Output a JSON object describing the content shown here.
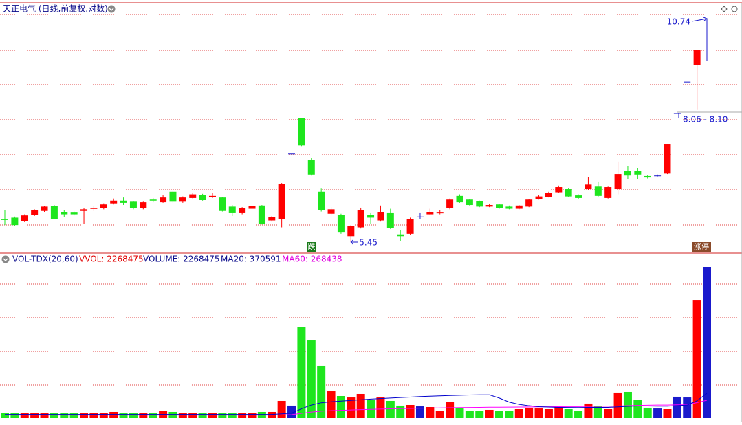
{
  "chart_data": {
    "type": "candlestick",
    "title": "天正电气 (日线,前复权,对数)",
    "log_scale": true,
    "grid": true,
    "up_color": "#ff0000",
    "down_color": "#1ee61e",
    "flat_color": "#1a1acc",
    "ma20_color": "#0000cc",
    "ma60_color": "#ff00ff",
    "open": [
      5.84,
      5.87,
      5.81,
      5.92,
      5.99,
      6.08,
      5.97,
      5.96,
      5.99,
      6.03,
      6.04,
      6.13,
      6.18,
      6.16,
      6.04,
      6.2,
      6.15,
      6.35,
      6.16,
      6.23,
      6.29,
      6.25,
      6.24,
      6.07,
      5.95,
      6.03,
      6.09,
      5.82,
      5.85,
      7.13,
      7.94,
      6.99,
      6.35,
      5.94,
      5.92,
      5.55,
      5.7,
      5.92,
      5.82,
      5.95,
      5.58,
      5.59,
      5.89,
      5.93,
      5.95,
      6.04,
      6.27,
      6.2,
      6.17,
      6.07,
      6.11,
      6.07,
      6.03,
      6.07,
      6.21,
      6.25,
      6.34,
      6.4,
      6.28,
      6.4,
      6.45,
      6.23,
      6.4,
      6.76,
      6.76,
      6.66,
      6.67,
      6.71,
      8.06,
      8.87,
      9.32,
      10.74
    ],
    "high": [
      6.0,
      5.89,
      5.93,
      6.02,
      6.08,
      6.1,
      6.0,
      5.98,
      6.04,
      6.08,
      6.13,
      6.22,
      6.24,
      6.17,
      6.16,
      6.23,
      6.28,
      6.36,
      6.26,
      6.32,
      6.31,
      6.32,
      6.25,
      6.1,
      6.06,
      6.1,
      6.1,
      5.9,
      6.52,
      7.13,
      7.95,
      7.03,
      6.41,
      6.06,
      5.94,
      5.74,
      6.05,
      5.95,
      6.09,
      6.03,
      5.65,
      5.87,
      5.95,
      6.03,
      6.0,
      6.22,
      6.3,
      6.21,
      6.18,
      6.12,
      6.12,
      6.09,
      6.1,
      6.21,
      6.28,
      6.35,
      6.47,
      6.42,
      6.3,
      6.64,
      6.55,
      6.45,
      6.96,
      6.86,
      6.82,
      6.68,
      6.69,
      7.34,
      8.06,
      8.87,
      9.76,
      10.74
    ],
    "low": [
      5.74,
      5.72,
      5.79,
      5.9,
      5.97,
      5.84,
      5.88,
      5.91,
      5.76,
      5.99,
      6.02,
      6.11,
      6.1,
      6.02,
      6.02,
      6.15,
      6.14,
      6.14,
      6.14,
      6.22,
      6.18,
      6.23,
      5.98,
      5.9,
      5.93,
      6.01,
      5.75,
      5.8,
      5.7,
      7.13,
      7.28,
      6.67,
      5.98,
      5.92,
      5.59,
      5.45,
      5.68,
      5.76,
      5.8,
      5.67,
      5.47,
      5.57,
      5.84,
      5.92,
      5.93,
      6.02,
      6.14,
      6.09,
      6.06,
      6.06,
      6.03,
      6.02,
      6.02,
      6.06,
      6.2,
      6.24,
      6.33,
      6.25,
      6.21,
      6.38,
      6.25,
      6.22,
      6.3,
      6.6,
      6.6,
      6.61,
      6.65,
      6.7,
      8.06,
      8.87,
      8.14,
      9.45
    ],
    "close": [
      5.83,
      5.74,
      5.91,
      6.0,
      6.07,
      5.85,
      5.93,
      5.93,
      6.02,
      6.04,
      6.11,
      6.18,
      6.14,
      6.04,
      6.15,
      6.18,
      6.24,
      6.16,
      6.24,
      6.3,
      6.19,
      6.27,
      5.99,
      5.95,
      6.04,
      6.08,
      5.76,
      5.88,
      6.5,
      7.13,
      7.31,
      6.69,
      6.0,
      6.02,
      5.61,
      5.72,
      6.0,
      5.87,
      5.97,
      5.69,
      5.55,
      5.85,
      5.89,
      5.97,
      5.96,
      6.2,
      6.15,
      6.1,
      6.07,
      6.1,
      6.04,
      6.03,
      6.09,
      6.2,
      6.26,
      6.33,
      6.44,
      6.26,
      6.23,
      6.49,
      6.27,
      6.44,
      6.7,
      6.67,
      6.69,
      6.63,
      6.67,
      7.33,
      8.06,
      8.87,
      9.76,
      10.74
    ],
    "volume": [
      72000,
      72000,
      72000,
      72000,
      72000,
      72000,
      72000,
      72000,
      72000,
      82000,
      82000,
      93000,
      72000,
      72000,
      72000,
      72000,
      103000,
      93000,
      72000,
      72000,
      72000,
      72000,
      72000,
      72000,
      72000,
      72000,
      93000,
      93000,
      258000,
      186000,
      1361000,
      1165000,
      784000,
      402000,
      330000,
      309000,
      361000,
      268000,
      309000,
      258000,
      186000,
      196000,
      175000,
      165000,
      113000,
      247000,
      155000,
      113000,
      113000,
      124000,
      113000,
      113000,
      134000,
      155000,
      144000,
      134000,
      165000,
      134000,
      103000,
      217000,
      175000,
      134000,
      382000,
      392000,
      278000,
      155000,
      144000,
      134000,
      320000,
      309000,
      1773000,
      2268475
    ],
    "ma20": [
      55000,
      55000,
      55000,
      55000,
      55000,
      55000,
      55000,
      55000,
      55000,
      55000,
      55000,
      55000,
      55000,
      55000,
      55000,
      55000,
      55000,
      55000,
      55000,
      55000,
      55000,
      55000,
      55000,
      55000,
      55000,
      55000,
      55000,
      55000,
      65000,
      75000,
      140000,
      195000,
      230000,
      245000,
      255000,
      265000,
      275000,
      285000,
      292000,
      300000,
      308000,
      315000,
      322000,
      328000,
      333000,
      338000,
      342000,
      345000,
      348000,
      348000,
      300000,
      240000,
      205000,
      185000,
      170000,
      165000,
      160000,
      158000,
      157000,
      160000,
      160000,
      160000,
      168000,
      175000,
      180000,
      180000,
      178000,
      178000,
      185000,
      195000,
      260000,
      370591
    ],
    "ma60": [
      45000,
      45000,
      45000,
      45000,
      45000,
      45000,
      45000,
      45000,
      45000,
      45000,
      45000,
      45000,
      45000,
      45000,
      45000,
      45000,
      45000,
      45000,
      45000,
      45000,
      45000,
      45000,
      45000,
      45000,
      45000,
      45000,
      45000,
      45000,
      48000,
      52000,
      72000,
      92000,
      105000,
      112000,
      117000,
      122000,
      127000,
      131000,
      135000,
      139000,
      142000,
      145000,
      148000,
      150000,
      152000,
      155000,
      157000,
      158000,
      160000,
      162000,
      163000,
      164000,
      165000,
      166000,
      168000,
      169000,
      170000,
      171000,
      172000,
      174000,
      176000,
      177000,
      180000,
      185000,
      190000,
      192000,
      194000,
      195000,
      198000,
      200000,
      232000,
      268438
    ],
    "indicator_labels": [
      "VOL-TDX(20,60)",
      "VVOL: 2268475",
      "VOLUME: 2268475",
      "MA20: 370591",
      "MA60: 268438"
    ],
    "range_label": "8.06 - 8.10",
    "badges": [
      "跌",
      "涨停"
    ]
  }
}
